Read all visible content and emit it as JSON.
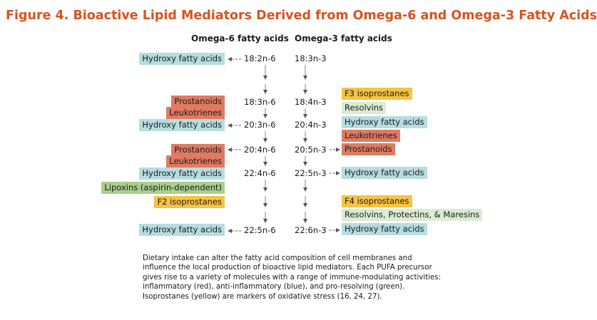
{
  "title": "Figure 4. Bioactive Lipid Mediators Derived from Omega-6 and Omega-3 Fatty Acids",
  "columns": {
    "omega6": "Omega-6 fatty acids",
    "omega3": "Omega-3 fatty acids"
  },
  "colors": {
    "title": "#d8531f",
    "red": "#e07a62",
    "blue": "#b6dde0",
    "green": "#a9d08e",
    "light_green": "#dcebd3",
    "yellow": "#f6c342"
  },
  "omega6_acids": [
    "18:2n-6",
    "18:3n-6",
    "20:3n-6",
    "20:4n-6",
    "22:4n-6",
    "22:5n-6"
  ],
  "omega3_acids": [
    "18:3n-3",
    "18:4n-3",
    "20:4n-3",
    "20:5n-3",
    "22:5n-3",
    "22:6n-3"
  ],
  "omega6_mediators": [
    {
      "label": "Hydroxy fatty acids",
      "color": "blue"
    },
    {
      "label": "Prostanoids",
      "color": "red"
    },
    {
      "label": "Leukotrienes",
      "color": "red"
    },
    {
      "label": "Hydroxy fatty acids",
      "color": "blue"
    },
    {
      "label": "Prostanoids",
      "color": "red"
    },
    {
      "label": "Leukotrienes",
      "color": "red"
    },
    {
      "label": "Hydroxy fatty acids",
      "color": "blue"
    },
    {
      "label": "Lipoxins (aspirin-dependent)",
      "color": "green"
    },
    {
      "label": "F2 isoprostanes",
      "color": "yellow"
    },
    {
      "label": "Hydroxy fatty acids",
      "color": "blue"
    }
  ],
  "omega3_mediators": [
    {
      "label": "F3 isoprostanes",
      "color": "yellow"
    },
    {
      "label": "Resolvins",
      "color": "light_green"
    },
    {
      "label": "Hydroxy fatty acids",
      "color": "blue"
    },
    {
      "label": "Leukotrienes",
      "color": "red"
    },
    {
      "label": "Prostanoids",
      "color": "red"
    },
    {
      "label": "Hydroxy fatty acids",
      "color": "blue"
    },
    {
      "label": "F4 isoprostanes",
      "color": "yellow"
    },
    {
      "label": "Resolvins, Protectins, & Maresins",
      "color": "light_green"
    },
    {
      "label": "Hydroxy fatty acids",
      "color": "blue"
    }
  ],
  "caption": "Dietary intake can alter the fatty acid composition of cell membranes and influence the local production of bioactive lipid mediators. Each PUFA precursor gives rise to a variety of molecules with a range of immune-modulating activities: inflammatory (red), anti-inflammatory (blue), and pro-resolving (green). Isoprostanes (yellow) are markers of oxidative stress (16, 24, 27)."
}
